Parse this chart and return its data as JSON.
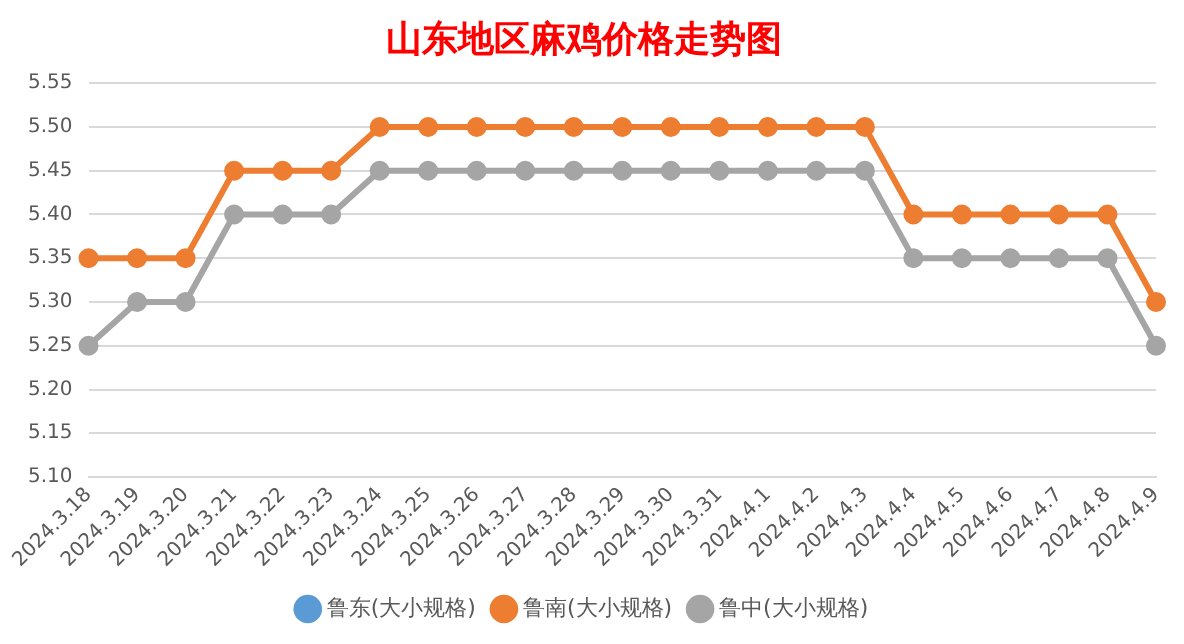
{
  "chart_data": {
    "type": "line",
    "title": "山东地区麻鸡价格走势图",
    "categories": [
      "2024.3.18",
      "2024.3.19",
      "2024.3.20",
      "2024.3.21",
      "2024.3.22",
      "2024.3.23",
      "2024.3.24",
      "2024.3.25",
      "2024.3.26",
      "2024.3.27",
      "2024.3.28",
      "2024.3.29",
      "2024.3.30",
      "2024.3.31",
      "2024.4.1",
      "2024.4.2",
      "2024.4.3",
      "2024.4.4",
      "2024.4.5",
      "2024.4.6",
      "2024.4.7",
      "2024.4.8",
      "2024.4.9"
    ],
    "series": [
      {
        "name": "鲁东(大小规格)",
        "color": "#5b9bd5",
        "values": [
          null,
          null,
          null,
          null,
          null,
          null,
          null,
          null,
          null,
          null,
          null,
          null,
          null,
          null,
          null,
          null,
          null,
          null,
          null,
          null,
          null,
          null,
          null
        ]
      },
      {
        "name": "鲁南(大小规格)",
        "color": "#ed7d31",
        "values": [
          5.35,
          5.35,
          5.35,
          5.45,
          5.45,
          5.45,
          5.5,
          5.5,
          5.5,
          5.5,
          5.5,
          5.5,
          5.5,
          5.5,
          5.5,
          5.5,
          5.5,
          5.4,
          5.4,
          5.4,
          5.4,
          5.4,
          5.3
        ]
      },
      {
        "name": "鲁中(大小规格)",
        "color": "#a5a5a5",
        "values": [
          5.25,
          5.3,
          5.3,
          5.4,
          5.4,
          5.4,
          5.45,
          5.45,
          5.45,
          5.45,
          5.45,
          5.45,
          5.45,
          5.45,
          5.45,
          5.45,
          5.45,
          5.35,
          5.35,
          5.35,
          5.35,
          5.35,
          5.25
        ]
      }
    ],
    "ylim": [
      5.1,
      5.55
    ],
    "yticks": [
      {
        "value": 5.1,
        "label": "5.10"
      },
      {
        "value": 5.15,
        "label": "5.15"
      },
      {
        "value": 5.2,
        "label": "5.20"
      },
      {
        "value": 5.25,
        "label": "5.25"
      },
      {
        "value": 5.3,
        "label": "5.30"
      },
      {
        "value": 5.35,
        "label": "5.35"
      },
      {
        "value": 5.4,
        "label": "5.40"
      },
      {
        "value": 5.45,
        "label": "5.45"
      },
      {
        "value": 5.5,
        "label": "5.50"
      },
      {
        "value": 5.55,
        "label": "5.55"
      }
    ],
    "grid": "y",
    "legend": "bottom",
    "marker": "circle",
    "line_style": "solid"
  }
}
